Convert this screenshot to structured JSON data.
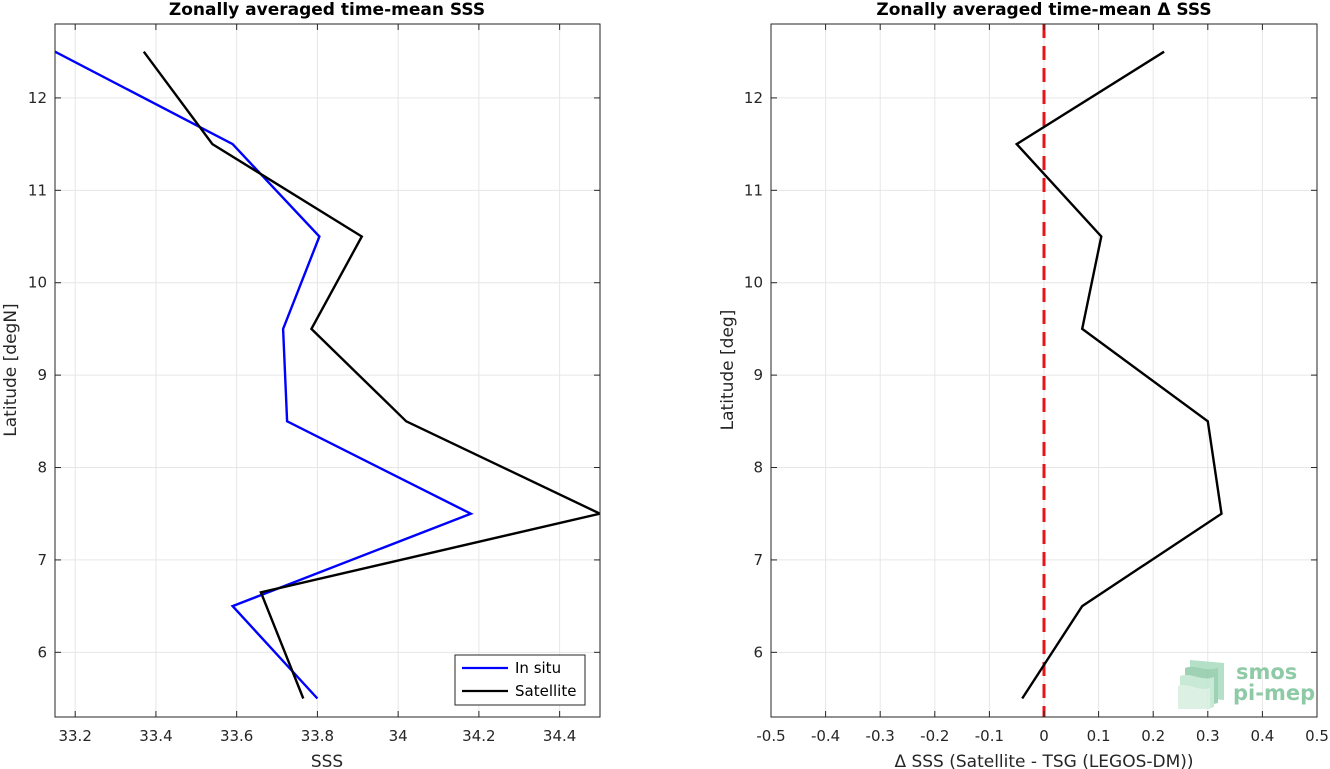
{
  "chart_data": [
    {
      "type": "line",
      "title": "Zonally averaged time-mean SSS",
      "xlabel": "SSS",
      "ylabel": "Latitude [degN]",
      "xlim": [
        33.15,
        34.5
      ],
      "ylim": [
        5.3,
        12.8
      ],
      "xticks": [
        33.2,
        33.4,
        33.6,
        33.8,
        34,
        34.2,
        34.4
      ],
      "xtick_labels": [
        "33.2",
        "33.4",
        "33.6",
        "33.8",
        "34",
        "34.2",
        "34.4"
      ],
      "yticks": [
        6,
        7,
        8,
        9,
        10,
        11,
        12
      ],
      "ytick_labels": [
        "6",
        "7",
        "8",
        "9",
        "10",
        "11",
        "12"
      ],
      "grid": true,
      "legend_position": "bottom-right",
      "series": [
        {
          "name": "In situ",
          "color": "#0000ff",
          "points": [
            [
              33.8,
              5.5
            ],
            [
              33.59,
              6.5
            ],
            [
              34.18,
              7.5
            ],
            [
              33.725,
              8.5
            ],
            [
              33.715,
              9.5
            ],
            [
              33.805,
              10.5
            ],
            [
              33.59,
              11.5
            ],
            [
              33.15,
              12.5
            ]
          ]
        },
        {
          "name": "Satellite",
          "color": "#000000",
          "points": [
            [
              33.765,
              5.5
            ],
            [
              33.66,
              6.65
            ],
            [
              34.5,
              7.5
            ],
            [
              34.02,
              8.5
            ],
            [
              33.785,
              9.5
            ],
            [
              33.91,
              10.5
            ],
            [
              33.54,
              11.5
            ],
            [
              33.37,
              12.5
            ]
          ]
        }
      ]
    },
    {
      "type": "line",
      "title": "Zonally averaged time-mean Δ SSS",
      "xlabel": "Δ SSS (Satellite - TSG (LEGOS-DM))",
      "ylabel": "Latitude [deg]",
      "xlim": [
        -0.5,
        0.5
      ],
      "ylim": [
        5.3,
        12.8
      ],
      "xticks": [
        -0.5,
        -0.4,
        -0.3,
        -0.2,
        -0.1,
        0,
        0.1,
        0.2,
        0.3,
        0.4,
        0.5
      ],
      "xtick_labels": [
        "-0.5",
        "-0.4",
        "-0.3",
        "-0.2",
        "-0.1",
        "0",
        "0.1",
        "0.2",
        "0.3",
        "0.4",
        "0.5"
      ],
      "yticks": [
        6,
        7,
        8,
        9,
        10,
        11,
        12
      ],
      "ytick_labels": [
        "6",
        "7",
        "8",
        "9",
        "10",
        "11",
        "12"
      ],
      "grid": true,
      "reference_line": {
        "x": 0,
        "color": "#e8141a",
        "style": "dashed"
      },
      "series": [
        {
          "color": "#000000",
          "points": [
            [
              -0.04,
              5.5
            ],
            [
              0.07,
              6.5
            ],
            [
              0.325,
              7.5
            ],
            [
              0.3,
              8.5
            ],
            [
              0.07,
              9.5
            ],
            [
              0.105,
              10.5
            ],
            [
              -0.05,
              11.5
            ],
            [
              0.22,
              12.5
            ]
          ]
        }
      ]
    }
  ],
  "logo": {
    "line1": "smos",
    "line2": "pi-mep",
    "color": "#8fcaa7"
  }
}
